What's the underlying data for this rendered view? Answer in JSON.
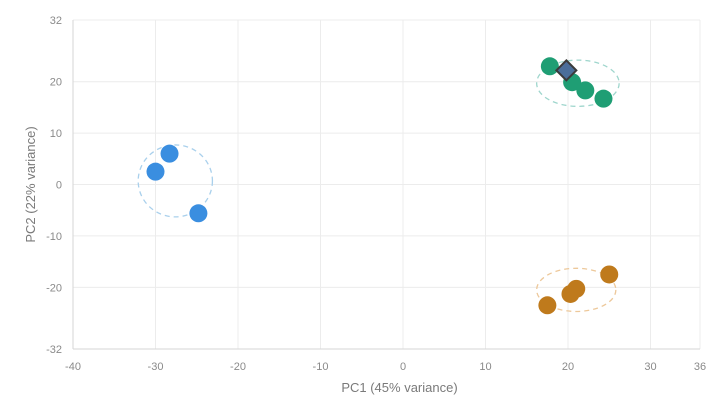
{
  "chart_data": {
    "type": "scatter",
    "title": "",
    "xlabel": "PC1  (45% variance)",
    "ylabel": "PC2  (22% variance)",
    "xlim": [
      -40,
      36
    ],
    "ylim": [
      -32,
      32
    ],
    "xticks": [
      -40,
      -30,
      -20,
      -10,
      0,
      10,
      20,
      30,
      36
    ],
    "yticks": [
      -32,
      -20,
      -10,
      0,
      10,
      20,
      32
    ],
    "grid": true,
    "legend": "none",
    "series": [
      {
        "color": "#3a8ee0",
        "ellipse_color": "#a9d0ec",
        "points": [
          [
            -28.3,
            6.0
          ],
          [
            -30.0,
            2.5
          ],
          [
            -24.8,
            -5.6
          ]
        ],
        "ellipse": {
          "cx": -27.6,
          "cy": 0.7,
          "rx": 4.5,
          "ry": 7.0
        }
      },
      {
        "color": "#1f9e74",
        "ellipse_color": "#9fd6cd",
        "points": [
          [
            17.8,
            23.0
          ],
          [
            20.5,
            19.9
          ],
          [
            22.1,
            18.3
          ],
          [
            24.3,
            16.7
          ]
        ],
        "ellipse": {
          "cx": 21.2,
          "cy": 19.7,
          "rx": 5.0,
          "ry": 4.5
        },
        "highlight": {
          "x": 19.8,
          "y": 22.2,
          "color": "#4a6e9a",
          "outline": "#3b3b3b"
        }
      },
      {
        "color": "#bf7a1c",
        "ellipse_color": "#edc89a",
        "points": [
          [
            25.0,
            -17.5
          ],
          [
            21.0,
            -20.3
          ],
          [
            20.3,
            -21.3
          ],
          [
            17.5,
            -23.5
          ]
        ],
        "ellipse": {
          "cx": 21.0,
          "cy": -20.5,
          "rx": 4.8,
          "ry": 4.2
        }
      }
    ]
  }
}
